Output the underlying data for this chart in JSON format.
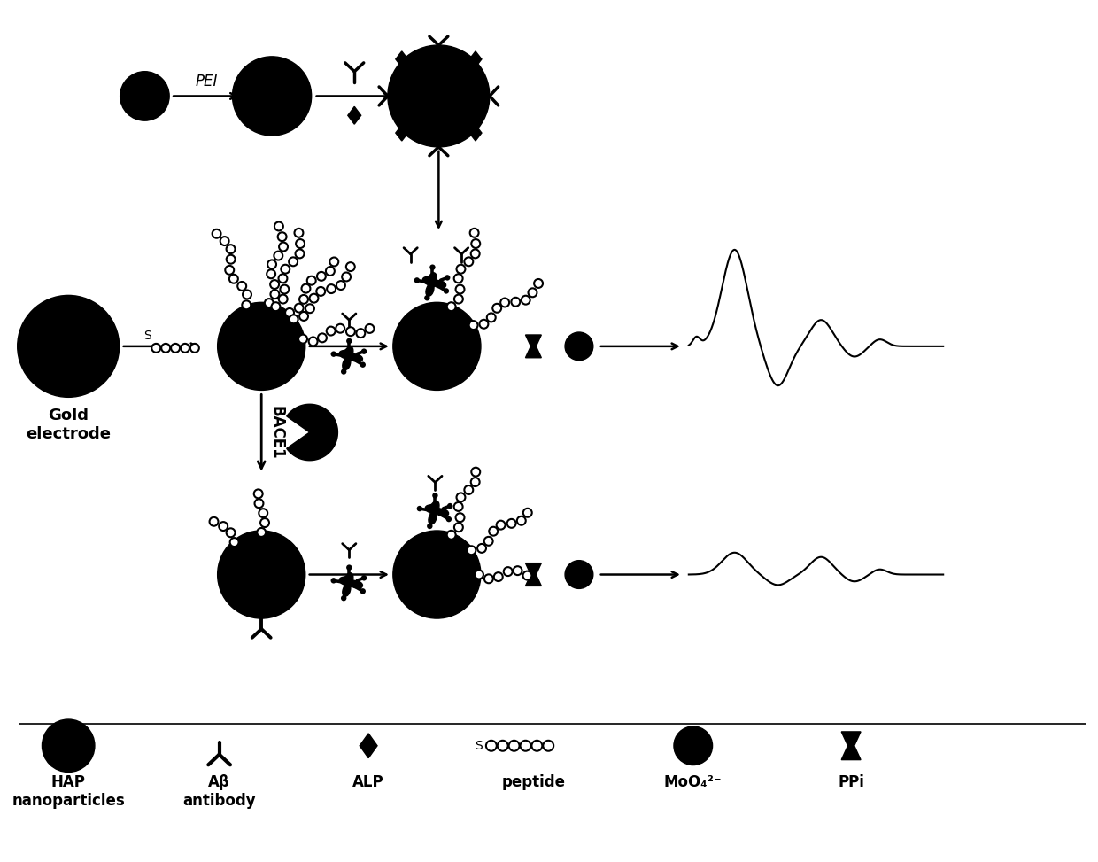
{
  "bg_color": "#ffffff",
  "fg_color": "#000000",
  "fig_width": 12.4,
  "fig_height": 9.73,
  "labels": {
    "gold_electrode": "Gold\nelectrode",
    "hap": "HAP\nnanoparticles",
    "ab_antibody": "Aβ\nantibody",
    "alp": "ALP",
    "peptide": "peptide",
    "moO4": "MoO₄²⁻",
    "ppi": "PPi",
    "pei": "PEI",
    "bace1": "BACE1"
  }
}
